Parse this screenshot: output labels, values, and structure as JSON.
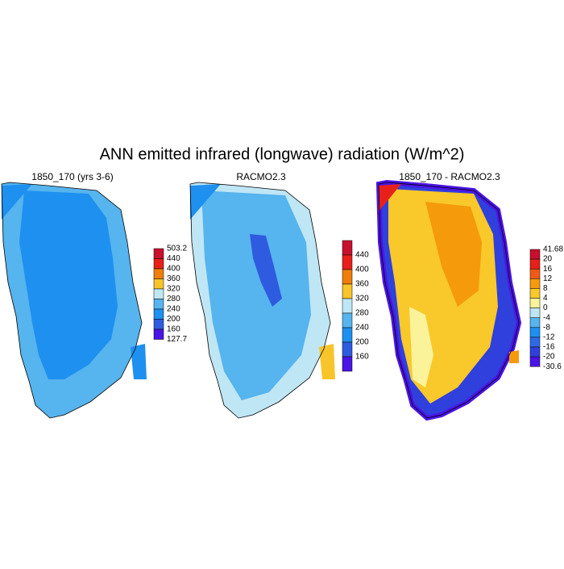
{
  "title": "ANN emitted infrared (longwave) radiation (W/m^2)",
  "panels": [
    {
      "title": "1850_170 (yrs 3-6)",
      "colorbar": {
        "labels": [
          "503.2",
          "440",
          "400",
          "360",
          "320",
          "280",
          "240",
          "200",
          "160",
          "127.7"
        ],
        "colors": [
          "#c8102e",
          "#e8201a",
          "#f07d0a",
          "#f7c42a",
          "#bfe6f5",
          "#56b4ee",
          "#1e90f0",
          "#2f5be0",
          "#4a14e6"
        ]
      }
    },
    {
      "title": "RACMO2.3",
      "colorbar": {
        "labels": [
          "440",
          "400",
          "360",
          "320",
          "280",
          "240",
          "200",
          "160"
        ],
        "colors": [
          "#c8102e",
          "#e8201a",
          "#f07d0a",
          "#f7c42a",
          "#bfe6f5",
          "#56b4ee",
          "#1e90f0",
          "#2f5be0",
          "#4a14e6"
        ]
      }
    },
    {
      "title": "1850_170 - RACMO2.3",
      "colorbar": {
        "labels": [
          "41.68",
          "20",
          "16",
          "12",
          "8",
          "4",
          "0",
          "-4",
          "-8",
          "-12",
          "-16",
          "-20",
          "-30.6"
        ],
        "colors": [
          "#c8102e",
          "#e8201a",
          "#f05a14",
          "#f59a0a",
          "#f9c82a",
          "#fbf39a",
          "#bfe6f5",
          "#56b4ee",
          "#1e90f0",
          "#2f6ae6",
          "#3040dc",
          "#4a14e6"
        ]
      }
    }
  ]
}
